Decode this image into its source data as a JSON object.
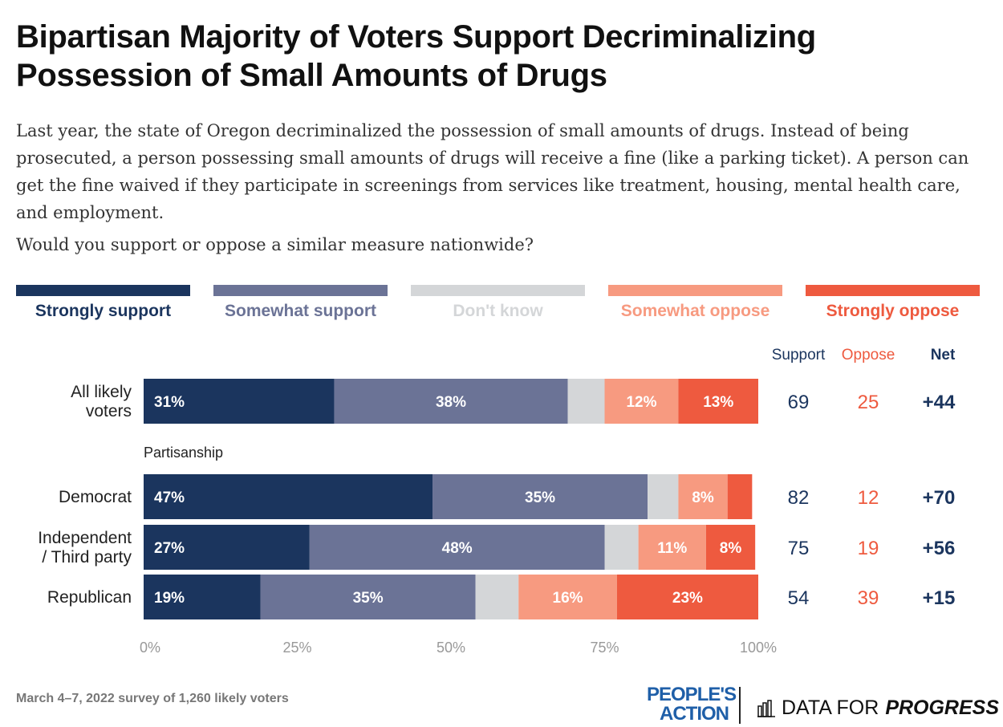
{
  "header": {
    "title": "Bipartisan Majority of Voters Support Decriminalizing Possession of Small Amounts of Drugs",
    "subtitle": "Last year, the state of Oregon decriminalized the possession of small amounts of drugs. Instead of being prosecuted, a person possessing small amounts of drugs will receive a fine (like a parking ticket). A person can get the fine waived if they participate in screenings from services like treatment, housing, mental health care, and employment.",
    "question": "Would you support or oppose a similar measure nationwide?"
  },
  "legend": [
    {
      "label": "Strongly support",
      "color": "#1b355e"
    },
    {
      "label": "Somewhat support",
      "color": "#6b7396"
    },
    {
      "label": "Don't know",
      "color": "#d4d6d8"
    },
    {
      "label": "Somewhat oppose",
      "color": "#f79a80"
    },
    {
      "label": "Strongly oppose",
      "color": "#ee5a3f"
    }
  ],
  "chart_data": {
    "type": "bar",
    "orientation": "horizontal",
    "stacked": true,
    "xlim": [
      0,
      100
    ],
    "xticks": [
      "0%",
      "25%",
      "50%",
      "75%",
      "100%"
    ],
    "group_label": "Partisanship",
    "summary_headers": {
      "support": "Support",
      "oppose": "Oppose",
      "net": "Net"
    },
    "rows": [
      {
        "label": "All likely voters",
        "label_lines": [
          "All likely",
          "voters"
        ],
        "values": [
          31,
          38,
          6,
          12,
          13
        ],
        "value_labels": [
          "31%",
          "38%",
          "",
          "12%",
          "13%"
        ],
        "support": "69",
        "oppose": "25",
        "net": "+44"
      },
      {
        "label": "Democrat",
        "label_lines": [
          "Democrat"
        ],
        "values": [
          47,
          35,
          5,
          8,
          4
        ],
        "value_labels": [
          "47%",
          "35%",
          "",
          "8%",
          ""
        ],
        "support": "82",
        "oppose": "12",
        "net": "+70"
      },
      {
        "label": "Independent / Third party",
        "label_lines": [
          "Independent",
          "/ Third party"
        ],
        "values": [
          27,
          48,
          5.5,
          11,
          8
        ],
        "value_labels": [
          "27%",
          "48%",
          "",
          "11%",
          "8%"
        ],
        "support": "75",
        "oppose": "19",
        "net": "+56"
      },
      {
        "label": "Republican",
        "label_lines": [
          "Republican"
        ],
        "values": [
          19,
          35,
          7,
          16,
          23
        ],
        "value_labels": [
          "19%",
          "35%",
          "",
          "16%",
          "23%"
        ],
        "support": "54",
        "oppose": "39",
        "net": "+15"
      }
    ],
    "series": [
      {
        "name": "Strongly support",
        "color": "#1b355e"
      },
      {
        "name": "Somewhat support",
        "color": "#6b7396"
      },
      {
        "name": "Don't know",
        "color": "#d4d6d8"
      },
      {
        "name": "Somewhat oppose",
        "color": "#f79a80"
      },
      {
        "name": "Strongly oppose",
        "color": "#ee5a3f"
      }
    ],
    "colors": {
      "support_text": "#1b355e",
      "oppose_text": "#ee5a3f",
      "net_text": "#1b355e",
      "tick_text": "#999999"
    }
  },
  "footer": {
    "note": "March 4–7, 2022 survey of 1,260 likely voters",
    "logo_pa_line1": "PEOPLE'S",
    "logo_pa_line2": "ACTION",
    "logo_dfp_regular": "DATA FOR",
    "logo_dfp_bold": "PROGRESS"
  }
}
